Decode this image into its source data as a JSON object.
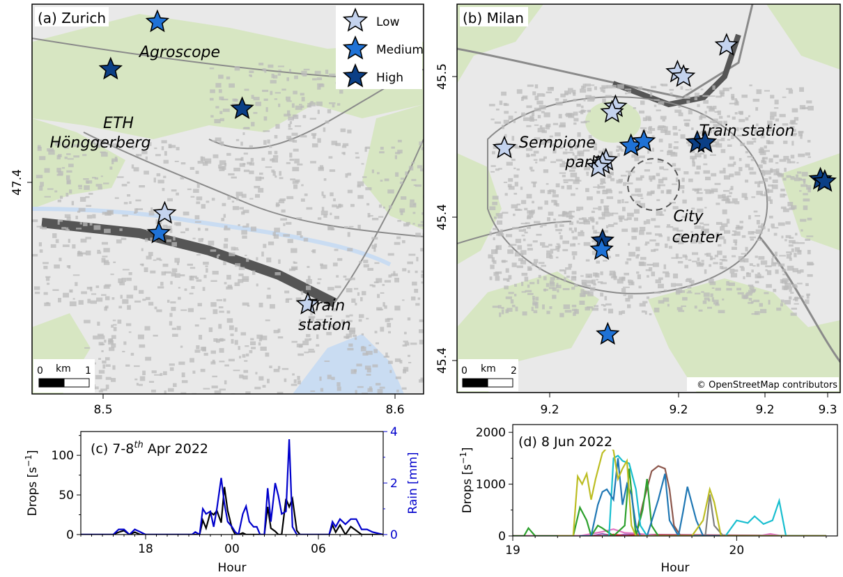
{
  "colors": {
    "park": "#d7e6c2",
    "urban": "#e9e9e9",
    "building": "#b9b9b9",
    "water": "#c9dcf2",
    "rail": "#555555",
    "low": "#c4d3ee",
    "medium": "#1f72d6",
    "high": "#0b3f86",
    "drops_line": "#000000",
    "rain_line": "#0000cc"
  },
  "legend": {
    "low": "Low",
    "medium": "Medium",
    "high": "High"
  },
  "map_a": {
    "title": "(a) Zurich",
    "places": [
      "Agroscope",
      "ETH",
      "Hönggerberg",
      "Train",
      "station"
    ],
    "scalebar": {
      "start": "0",
      "unit": "km",
      "end": "1"
    },
    "xticks": [
      "8.5",
      "8.6"
    ],
    "yticks": [
      "47.4"
    ],
    "stars": [
      {
        "lon": 8.5195,
        "lat": 47.4375,
        "level": "medium"
      },
      {
        "lon": 8.5035,
        "lat": 47.4255,
        "level": "high"
      },
      {
        "lon": 8.5485,
        "lat": 47.4155,
        "level": "high"
      },
      {
        "lon": 8.522,
        "lat": 47.389,
        "level": "low"
      },
      {
        "lon": 8.52,
        "lat": 47.384,
        "level": "medium"
      },
      {
        "lon": 8.571,
        "lat": 47.366,
        "level": "low"
      }
    ]
  },
  "map_b": {
    "title": "(b) Milan",
    "places": [
      "Train station",
      "Sempione",
      "park",
      "City",
      "center"
    ],
    "scalebar": {
      "start": "0",
      "unit": "km",
      "end": "2"
    },
    "attribution": "© OpenStreetMap contributors",
    "xticks": [
      "9.2",
      "9.2",
      "9.2",
      "9.3"
    ],
    "yticks": [
      "45.5",
      "45.4",
      "45.4"
    ],
    "stars": [
      {
        "lon": 9.2645,
        "lat": 45.5195,
        "level": "low"
      },
      {
        "lon": 9.236,
        "lat": 45.5075,
        "level": "low"
      },
      {
        "lon": 9.2395,
        "lat": 45.5055,
        "level": "low"
      },
      {
        "lon": 9.2,
        "lat": 45.492,
        "level": "low"
      },
      {
        "lon": 9.198,
        "lat": 45.4895,
        "level": "low"
      },
      {
        "lon": 9.1355,
        "lat": 45.4735,
        "level": "low"
      },
      {
        "lon": 9.1945,
        "lat": 45.468,
        "level": "low"
      },
      {
        "lon": 9.1925,
        "lat": 45.4665,
        "level": "low"
      },
      {
        "lon": 9.19,
        "lat": 45.465,
        "level": "low"
      },
      {
        "lon": 9.209,
        "lat": 45.4745,
        "level": "medium"
      },
      {
        "lon": 9.2165,
        "lat": 45.4765,
        "level": "medium"
      },
      {
        "lon": 9.2475,
        "lat": 45.476,
        "level": "high"
      },
      {
        "lon": 9.252,
        "lat": 45.476,
        "level": "high"
      },
      {
        "lon": 9.319,
        "lat": 45.4595,
        "level": "high"
      },
      {
        "lon": 9.3215,
        "lat": 45.4585,
        "level": "high"
      },
      {
        "lon": 9.1925,
        "lat": 45.432,
        "level": "high"
      },
      {
        "lon": 9.192,
        "lat": 45.428,
        "level": "medium"
      },
      {
        "lon": 9.1955,
        "lat": 45.39,
        "level": "medium"
      }
    ]
  },
  "chart_data": [
    {
      "type": "line",
      "title_prefix": "(c) 7-8",
      "title_sup": "th",
      "title_suffix": " Apr 2022",
      "xlabel": "Hour",
      "ylabel": "Drops [s",
      "ylabel_sup": "−1",
      "ylabel_end": "]",
      "y2label": "Rain [mm]",
      "xticks": [
        "18",
        "00",
        "06"
      ],
      "yticks": [
        "0",
        "50",
        "100"
      ],
      "y2ticks": [
        "0",
        "2",
        "4"
      ],
      "xlim": [
        0,
        28
      ],
      "ylim": [
        0,
        130
      ],
      "y2lim": [
        0,
        4
      ],
      "series": [
        {
          "x": [
            0,
            1,
            2,
            3,
            3.5,
            4,
            4.5,
            5,
            5.5,
            6,
            7,
            8,
            9,
            9.5,
            10,
            10.3,
            10.6,
            11,
            11.3,
            11.6,
            12,
            12.3,
            12.6,
            13,
            13.3,
            13.6,
            14,
            14.3,
            14.6,
            15,
            15.3,
            15.6,
            16,
            16.3,
            16.6,
            17,
            17.3,
            17.6,
            18,
            18.3,
            18.6,
            19,
            19.3,
            19.6,
            20,
            20.3,
            20.6,
            21,
            21.3,
            21.6,
            22,
            22.3,
            22.6,
            23,
            23.3,
            23.6,
            24,
            24.5,
            25,
            25.5,
            26,
            26.5,
            27,
            28
          ],
          "y": [
            0,
            0,
            0,
            0,
            3,
            5,
            0,
            3,
            0,
            0,
            0,
            0,
            0,
            0,
            0,
            0,
            0,
            0,
            18,
            8,
            28,
            25,
            30,
            15,
            60,
            30,
            8,
            0,
            0,
            2,
            0,
            0,
            0,
            0,
            0,
            0,
            35,
            8,
            4,
            0,
            0,
            45,
            35,
            45,
            5,
            0,
            0,
            0,
            0,
            0,
            0,
            0,
            0,
            0,
            12,
            3,
            12,
            0,
            10,
            5,
            0,
            0,
            0,
            0
          ]
        },
        {
          "x": [
            0,
            1,
            2,
            3,
            3.5,
            4,
            4.5,
            5,
            5.5,
            6,
            7,
            8,
            9,
            9.5,
            10,
            10.3,
            10.6,
            11,
            11.3,
            11.6,
            12,
            12.3,
            12.6,
            13,
            13.3,
            13.6,
            14,
            14.3,
            14.6,
            15,
            15.3,
            15.6,
            16,
            16.3,
            16.6,
            17,
            17.3,
            17.6,
            18,
            18.3,
            18.6,
            19,
            19.3,
            19.6,
            20,
            20.3,
            20.6,
            21,
            21.3,
            21.6,
            22,
            22.3,
            22.6,
            23,
            23.3,
            23.6,
            24,
            24.5,
            25,
            25.5,
            26,
            26.5,
            27,
            28
          ],
          "y2": [
            0,
            0,
            0,
            0,
            0.2,
            0.2,
            0,
            0.2,
            0.1,
            0,
            0,
            0,
            0,
            0,
            0,
            0,
            0.1,
            0,
            1.0,
            0.8,
            0.9,
            0.3,
            1.0,
            2.2,
            1.2,
            0.5,
            0.3,
            0.1,
            0,
            0.8,
            1.1,
            0.5,
            0.3,
            0.3,
            0,
            0,
            1.8,
            0.5,
            2.0,
            1.5,
            0.8,
            0.9,
            3.7,
            0.3,
            0,
            0,
            0,
            0,
            0,
            0,
            0,
            0,
            0,
            0,
            0.5,
            0.3,
            0.6,
            0.4,
            0.6,
            0.6,
            0.2,
            0.2,
            0.1,
            0
          ]
        }
      ]
    },
    {
      "type": "line",
      "title": "(d) 8 Jun 2022",
      "xlabel": "Hour",
      "ylabel": "Drops [s",
      "ylabel_sup": "−1",
      "ylabel_end": "]",
      "xticks": [
        "19",
        "20"
      ],
      "yticks": [
        "0",
        "1000",
        "2000"
      ],
      "xlim": [
        19.0,
        20.45
      ],
      "ylim": [
        0,
        2150
      ],
      "series": [
        {
          "color": "#bcbd22",
          "x": [
            19.2,
            19.27,
            19.29,
            19.31,
            19.33,
            19.35,
            19.37,
            19.4,
            19.43,
            19.45,
            19.47,
            19.49,
            19.51,
            19.53,
            19.55,
            19.6,
            19.8,
            19.85,
            19.88,
            19.9,
            19.93,
            20.4
          ],
          "y": [
            0,
            0,
            1150,
            1000,
            1200,
            700,
            1100,
            1600,
            1750,
            1650,
            1100,
            1300,
            1450,
            200,
            0,
            0,
            0,
            300,
            900,
            650,
            0,
            0
          ]
        },
        {
          "color": "#1f77b4",
          "x": [
            19.3,
            19.35,
            19.38,
            19.4,
            19.42,
            19.45,
            19.47,
            19.49,
            19.51,
            19.53,
            19.55,
            19.57,
            19.6,
            19.65,
            19.68,
            19.7,
            19.74,
            19.76,
            19.78,
            19.82,
            19.85,
            20.4
          ],
          "y": [
            0,
            0,
            600,
            850,
            900,
            700,
            1500,
            600,
            1000,
            800,
            200,
            0,
            0,
            700,
            1200,
            300,
            0,
            450,
            950,
            300,
            0,
            0
          ]
        },
        {
          "color": "#17becf",
          "x": [
            19.4,
            19.43,
            19.45,
            19.47,
            19.49,
            19.52,
            19.55,
            19.57,
            19.6,
            19.95,
            20.0,
            20.05,
            20.08,
            20.12,
            20.16,
            20.19,
            20.22,
            20.3
          ],
          "y": [
            0,
            0,
            1500,
            1550,
            1450,
            1400,
            900,
            200,
            0,
            0,
            300,
            250,
            380,
            230,
            300,
            680,
            0,
            0
          ]
        },
        {
          "color": "#2ca02c",
          "x": [
            19.0,
            19.05,
            19.07,
            19.1,
            19.27,
            19.3,
            19.33,
            19.35,
            19.38,
            19.4,
            19.45,
            19.5,
            19.52,
            19.55,
            19.58,
            19.6,
            19.62,
            19.65,
            19.7,
            20.4
          ],
          "y": [
            0,
            0,
            150,
            0,
            0,
            550,
            300,
            0,
            200,
            150,
            0,
            200,
            1300,
            0,
            500,
            1100,
            200,
            0,
            0,
            0
          ]
        },
        {
          "color": "#8c564b",
          "x": [
            19.55,
            19.58,
            19.62,
            19.65,
            19.68,
            19.7,
            19.72,
            19.75,
            19.8,
            20.4
          ],
          "y": [
            0,
            600,
            1250,
            1350,
            1300,
            900,
            200,
            0,
            0,
            0
          ]
        },
        {
          "color": "#7f7f7f",
          "x": [
            19.8,
            19.86,
            19.88,
            19.9,
            19.94,
            20.4
          ],
          "y": [
            0,
            0,
            800,
            200,
            0,
            0
          ]
        },
        {
          "color": "#e377c2",
          "x": [
            19.0,
            19.3,
            19.4,
            19.45,
            19.5,
            19.55,
            19.65,
            20.1,
            20.15,
            20.2,
            20.4
          ],
          "y": [
            0,
            0,
            80,
            130,
            60,
            50,
            0,
            0,
            40,
            0,
            0
          ]
        },
        {
          "color": "#d62728",
          "x": [
            19.0,
            19.4,
            19.45,
            19.5,
            19.55,
            20.4
          ],
          "y": [
            0,
            0,
            30,
            0,
            20,
            0
          ]
        },
        {
          "color": "#9467bd",
          "x": [
            19.0,
            19.35,
            19.4,
            19.45,
            19.5,
            20.4
          ],
          "y": [
            0,
            0,
            40,
            0,
            30,
            0
          ]
        },
        {
          "color": "#ff7f0e",
          "x": [
            19.0,
            19.8,
            19.85,
            19.9,
            20.0,
            20.4
          ],
          "y": [
            0,
            0,
            20,
            0,
            10,
            0
          ]
        }
      ]
    }
  ]
}
